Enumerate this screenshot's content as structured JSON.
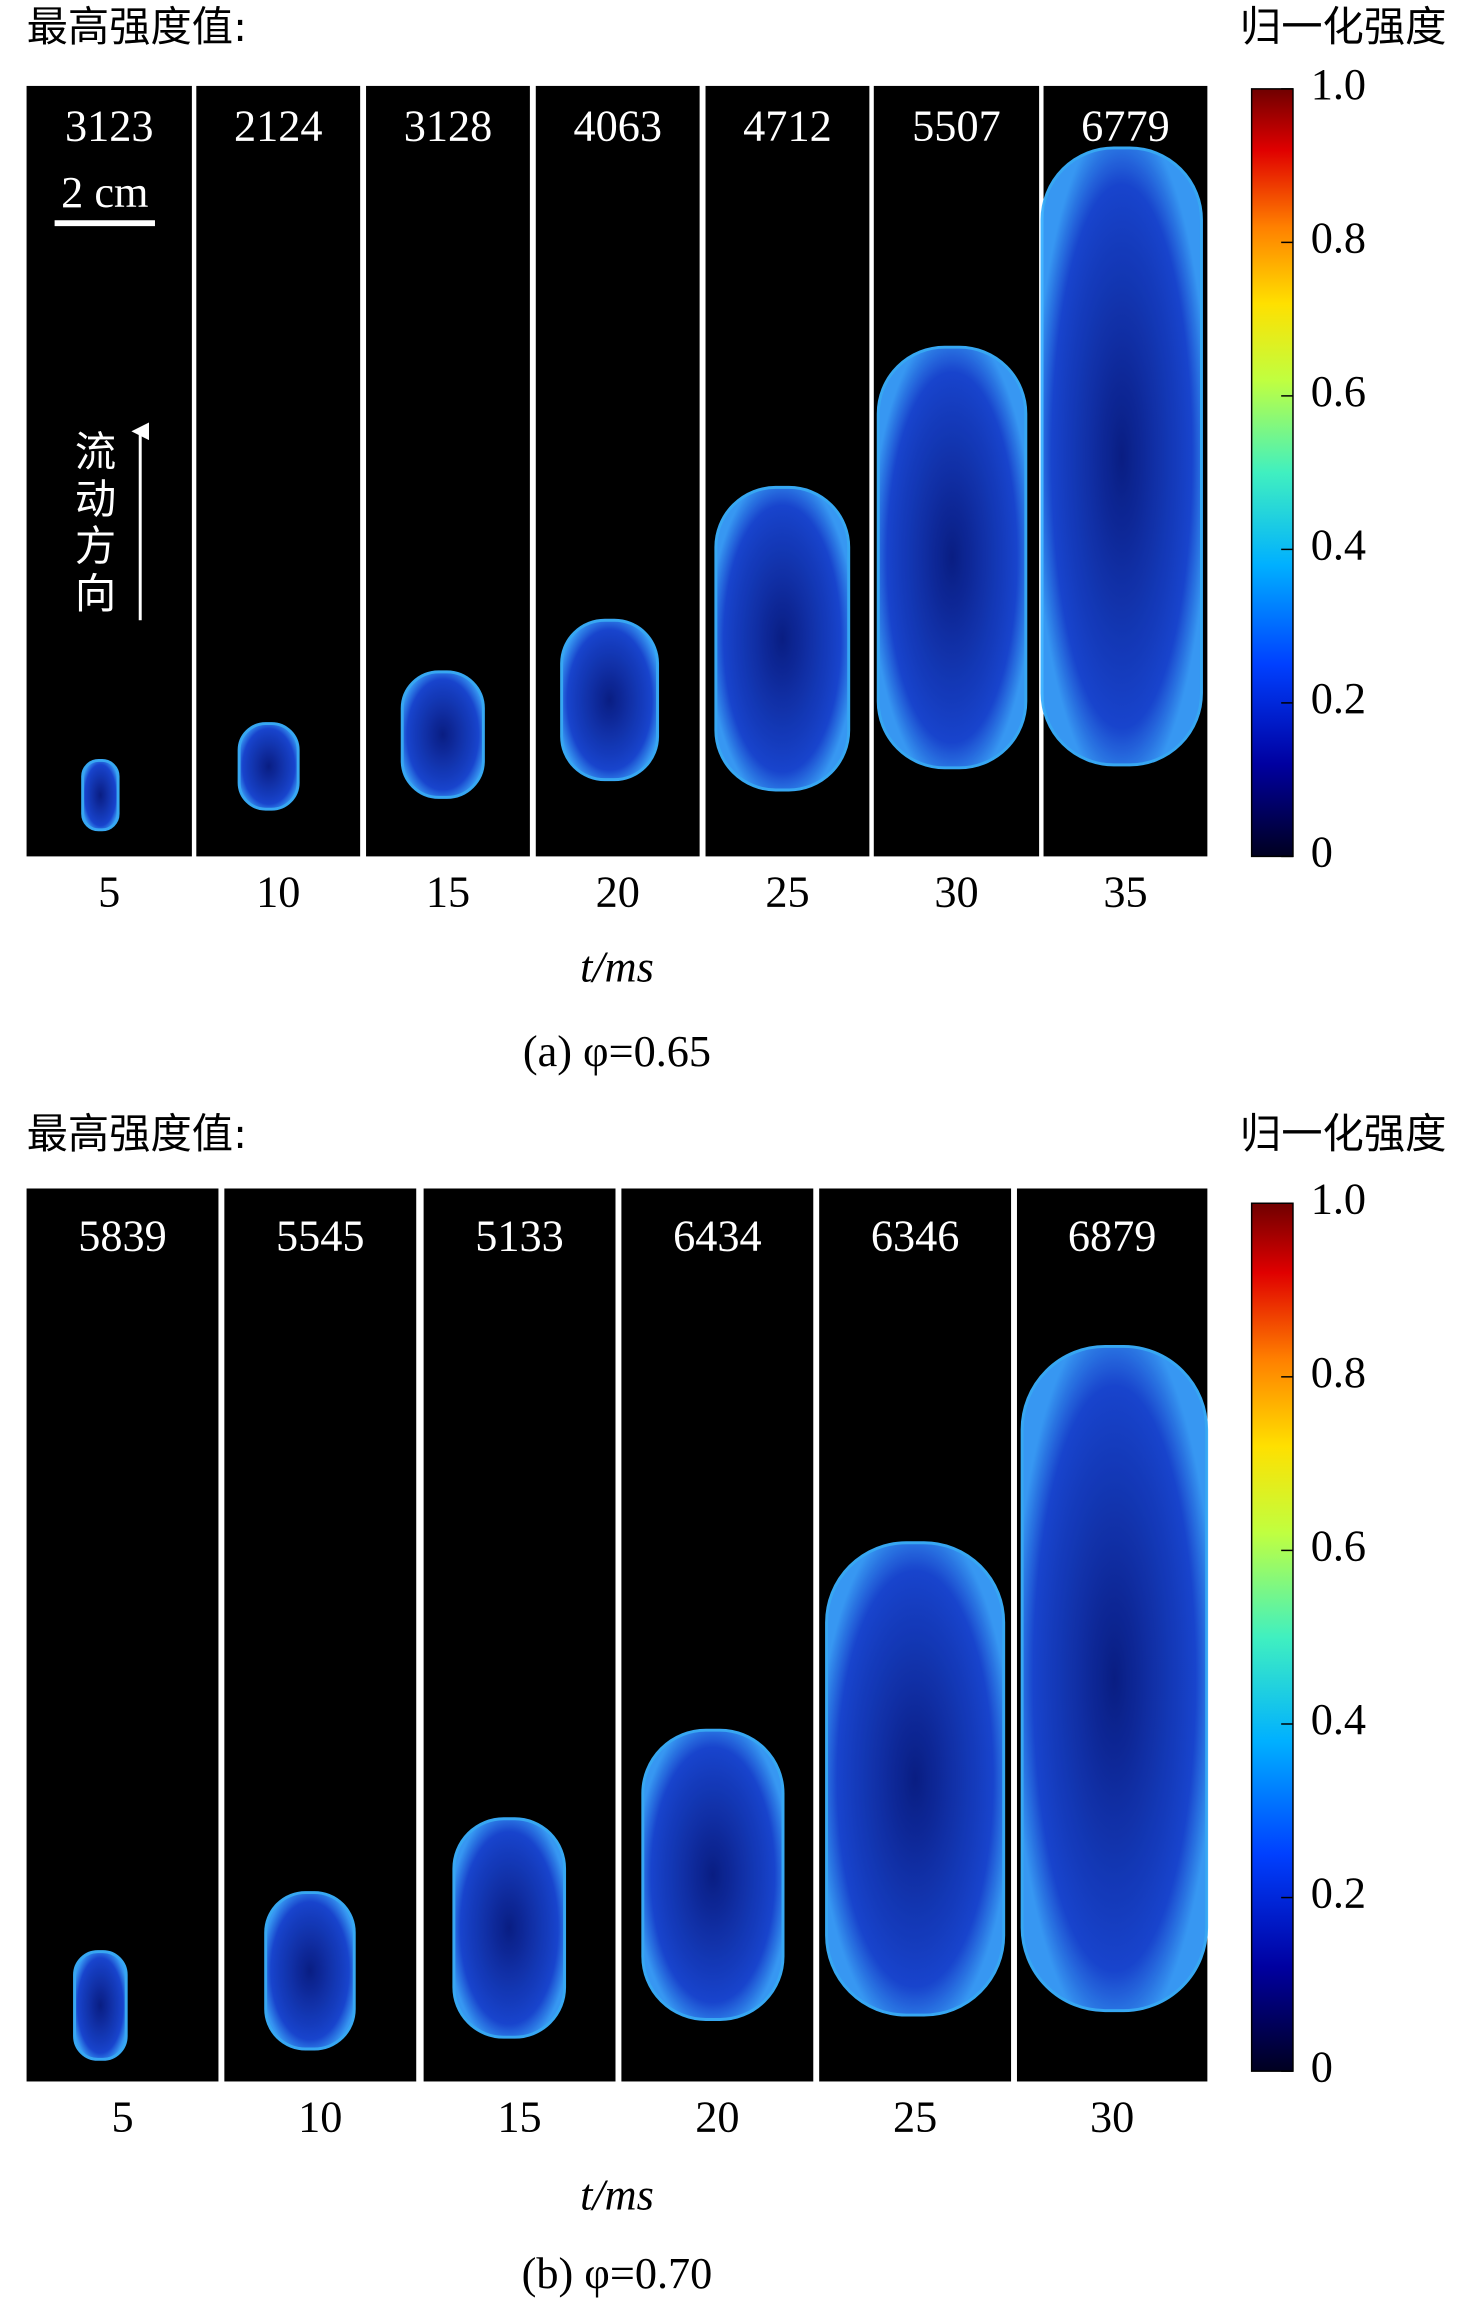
{
  "panels": [
    {
      "max_label": "最高强度值:",
      "colorbar_label": "归一化强度",
      "max_values": [
        "3123",
        "2124",
        "3128",
        "4063",
        "4712",
        "5507",
        "6779"
      ],
      "times": [
        "5",
        "10",
        "15",
        "20",
        "25",
        "30",
        "35"
      ],
      "scale_bar": "2 cm",
      "flow_direction": "流动方向",
      "x_label": "t/ms",
      "caption": "(a) φ=0.65",
      "colorbar_ticks": [
        "1.0",
        "0.8",
        "0.6",
        "0.4",
        "0.2",
        "0"
      ]
    },
    {
      "max_label": "最高强度值:",
      "colorbar_label": "归一化强度",
      "max_values": [
        "5839",
        "5545",
        "5133",
        "6434",
        "6346",
        "6879"
      ],
      "times": [
        "5",
        "10",
        "15",
        "20",
        "25",
        "30"
      ],
      "x_label": "t/ms",
      "caption": "(b) φ=0.70",
      "colorbar_ticks": [
        "1.0",
        "0.8",
        "0.6",
        "0.4",
        "0.2",
        "0"
      ]
    }
  ]
}
